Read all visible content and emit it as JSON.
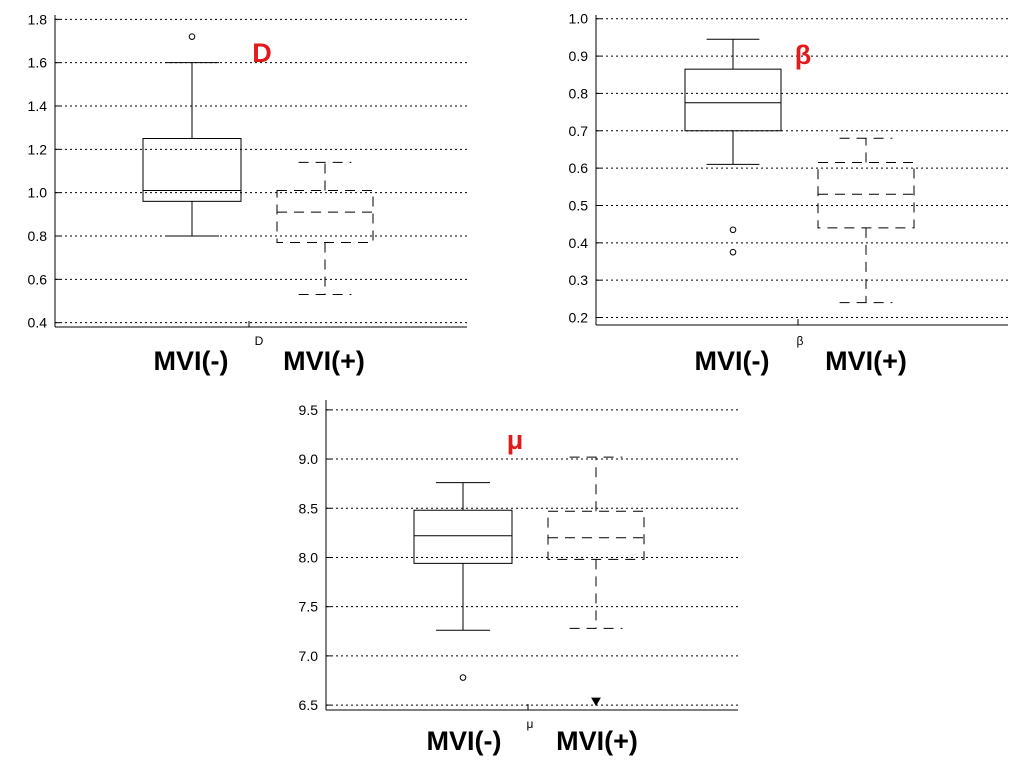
{
  "chart_data": [
    {
      "type": "boxplot",
      "title": "D",
      "xlabel": "D",
      "categories": [
        "MVI(-)",
        "MVI(+)"
      ],
      "yticks": [
        "0.4",
        "0.6",
        "0.8",
        "1.0",
        "1.2",
        "1.4",
        "1.6",
        "1.8"
      ],
      "ylim": [
        0.38,
        1.82
      ],
      "grid": "dotted horizontal",
      "colors": {
        "title": "#e31a1c",
        "box": "#000000",
        "grid": "#000000"
      },
      "boxes": [
        {
          "name": "MVI(-)",
          "style": "solid",
          "whisker_low": 0.8,
          "q1": 0.96,
          "median": 1.01,
          "q3": 1.25,
          "whisker_high": 1.6,
          "outliers": [
            1.72
          ]
        },
        {
          "name": "MVI(+)",
          "style": "dashed",
          "whisker_low": 0.53,
          "q1": 0.77,
          "median": 0.91,
          "q3": 1.01,
          "whisker_high": 1.14,
          "outliers": []
        }
      ]
    },
    {
      "type": "boxplot",
      "title": "β",
      "xlabel": "β",
      "categories": [
        "MVI(-)",
        "MVI(+)"
      ],
      "yticks": [
        "0.2",
        "0.3",
        "0.4",
        "0.5",
        "0.6",
        "0.7",
        "0.8",
        "0.9",
        "1.0"
      ],
      "ylim": [
        0.18,
        1.01
      ],
      "grid": "dotted horizontal",
      "colors": {
        "title": "#e31a1c",
        "box": "#000000",
        "grid": "#000000"
      },
      "boxes": [
        {
          "name": "MVI(-)",
          "style": "solid",
          "whisker_low": 0.61,
          "q1": 0.7,
          "median": 0.775,
          "q3": 0.865,
          "whisker_high": 0.945,
          "outliers": [
            0.435,
            0.375
          ]
        },
        {
          "name": "MVI(+)",
          "style": "dashed",
          "whisker_low": 0.24,
          "q1": 0.44,
          "median": 0.53,
          "q3": 0.615,
          "whisker_high": 0.68,
          "outliers": []
        }
      ]
    },
    {
      "type": "boxplot",
      "title": "μ",
      "xlabel": "μ",
      "categories": [
        "MVI(-)",
        "MVI(+)"
      ],
      "yticks": [
        "6.5",
        "7.0",
        "7.5",
        "8.0",
        "8.5",
        "9.0",
        "9.5"
      ],
      "ylim": [
        6.45,
        9.6
      ],
      "grid": "dotted horizontal",
      "colors": {
        "title": "#e31a1c",
        "box": "#000000",
        "grid": "#000000"
      },
      "boxes": [
        {
          "name": "MVI(-)",
          "style": "solid",
          "whisker_low": 7.26,
          "q1": 7.94,
          "median": 8.22,
          "q3": 8.48,
          "whisker_high": 8.76,
          "outliers": [
            6.78
          ],
          "outlier_marker": "circle"
        },
        {
          "name": "MVI(+)",
          "style": "dashed",
          "whisker_low": 7.28,
          "q1": 7.98,
          "median": 8.2,
          "q3": 8.47,
          "whisker_high": 9.02,
          "outliers": [
            6.54
          ],
          "outlier_marker": "triangle"
        }
      ]
    }
  ]
}
